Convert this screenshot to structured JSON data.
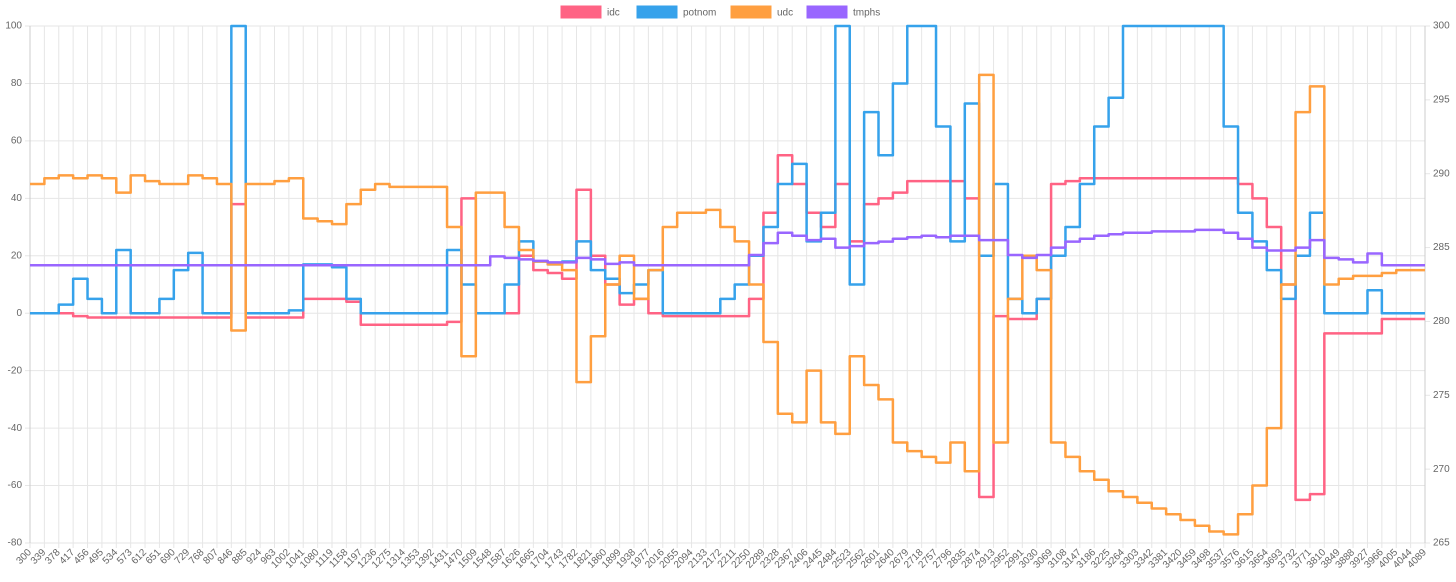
{
  "chart_data": {
    "type": "line",
    "stepped": true,
    "grid": true,
    "categories": [
      "300",
      "339",
      "378",
      "417",
      "456",
      "495",
      "534",
      "573",
      "612",
      "651",
      "690",
      "729",
      "768",
      "807",
      "846",
      "885",
      "924",
      "963",
      "1002",
      "1041",
      "1080",
      "1119",
      "1158",
      "1197",
      "1236",
      "1275",
      "1314",
      "1353",
      "1392",
      "1431",
      "1470",
      "1509",
      "1548",
      "1587",
      "1626",
      "1665",
      "1704",
      "1743",
      "1782",
      "1821",
      "1860",
      "1899",
      "1938",
      "1977",
      "2016",
      "2055",
      "2094",
      "2133",
      "2172",
      "2211",
      "2250",
      "2289",
      "2328",
      "2367",
      "2406",
      "2445",
      "2484",
      "2523",
      "2562",
      "2601",
      "2640",
      "2679",
      "2718",
      "2757",
      "2796",
      "2835",
      "2874",
      "2913",
      "2952",
      "2991",
      "3030",
      "3069",
      "3108",
      "3147",
      "3186",
      "3225",
      "3264",
      "3303",
      "3342",
      "3381",
      "3420",
      "3459",
      "3498",
      "3537",
      "3576",
      "3615",
      "3654",
      "3693",
      "3732",
      "3771",
      "3810",
      "3849",
      "3888",
      "3927",
      "3966",
      "4005",
      "4044",
      "4089"
    ],
    "ylim": [
      -80,
      100
    ],
    "yticks": [
      -80,
      -60,
      -40,
      -20,
      0,
      20,
      40,
      60,
      80,
      100
    ],
    "y2lim": [
      265,
      300
    ],
    "y2ticks": [
      265,
      270,
      275,
      280,
      285,
      290,
      295,
      300
    ],
    "series": [
      {
        "name": "idc",
        "color": "#ff6384",
        "values": [
          0,
          0,
          0,
          -1,
          -1.5,
          -1.5,
          -1.5,
          -1.5,
          -1.5,
          -1.5,
          -1.5,
          -1.5,
          -1.5,
          -1.5,
          38,
          -1.5,
          -1.5,
          -1.5,
          -1.5,
          5,
          5,
          5,
          4,
          -4,
          -4,
          -4,
          -4,
          -4,
          -4,
          -3,
          40,
          0,
          0,
          0,
          20,
          15,
          14,
          12,
          43,
          20,
          10,
          3,
          5,
          0,
          -1,
          -1,
          -1,
          -1,
          -1,
          -1,
          5,
          35,
          55,
          45,
          35,
          30,
          45,
          25,
          38,
          40,
          42,
          46,
          46,
          46,
          46,
          40,
          -64,
          -1,
          -2,
          -2,
          5,
          45,
          46,
          47,
          47,
          47,
          47,
          47,
          47,
          47,
          47,
          47,
          47,
          47,
          45,
          40,
          30,
          10,
          -65,
          -63,
          -7,
          -7,
          -7,
          -7,
          -2,
          -2,
          -2,
          -2
        ]
      },
      {
        "name": "potnom",
        "color": "#36a2eb",
        "values": [
          0,
          0,
          3,
          12,
          5,
          0,
          22,
          0,
          0,
          5,
          15,
          21,
          0,
          0,
          100,
          0,
          0,
          0,
          1,
          17,
          17,
          16,
          5,
          0,
          0,
          0,
          0,
          0,
          0,
          22,
          10,
          0,
          0,
          10,
          25,
          18,
          17,
          18,
          25,
          15,
          12,
          7,
          10,
          15,
          0,
          0,
          0,
          0,
          5,
          10,
          20,
          30,
          45,
          52,
          25,
          35,
          100,
          10,
          70,
          55,
          80,
          100,
          100,
          65,
          25,
          73,
          20,
          45,
          5,
          0,
          5,
          20,
          30,
          45,
          65,
          75,
          100,
          100,
          100,
          100,
          100,
          100,
          100,
          65,
          35,
          25,
          15,
          5,
          20,
          35,
          0,
          0,
          0,
          8,
          0,
          0,
          0,
          0
        ]
      },
      {
        "name": "udc",
        "color": "#ff9f40",
        "values": [
          45,
          47,
          48,
          47,
          48,
          47,
          42,
          48,
          46,
          45,
          45,
          48,
          47,
          45,
          -6,
          45,
          45,
          46,
          47,
          33,
          32,
          31,
          38,
          43,
          45,
          44,
          44,
          44,
          44,
          30,
          -15,
          42,
          42,
          30,
          22,
          18,
          17,
          15,
          -24,
          -8,
          10,
          20,
          5,
          15,
          30,
          35,
          35,
          36,
          30,
          25,
          10,
          -10,
          -35,
          -38,
          -20,
          -38,
          -42,
          -15,
          -25,
          -30,
          -45,
          -48,
          -50,
          -52,
          -45,
          -55,
          83,
          -45,
          5,
          20,
          15,
          -45,
          -50,
          -55,
          -58,
          -62,
          -64,
          -66,
          -68,
          -70,
          -72,
          -74,
          -76,
          -77,
          -70,
          -60,
          -40,
          10,
          70,
          79,
          10,
          12,
          13,
          13,
          14,
          15,
          15,
          15
        ]
      },
      {
        "name": "tmphs",
        "color": "#9966ff",
        "axis": "y2",
        "values": [
          283.8,
          283.8,
          283.8,
          283.8,
          283.8,
          283.8,
          283.8,
          283.8,
          283.8,
          283.8,
          283.8,
          283.8,
          283.8,
          283.8,
          283.8,
          283.8,
          283.8,
          283.8,
          283.8,
          283.8,
          283.8,
          283.8,
          283.8,
          283.8,
          283.8,
          283.8,
          283.8,
          283.8,
          283.8,
          283.8,
          283.8,
          283.8,
          284.4,
          284.3,
          284.2,
          284.1,
          284,
          284,
          284.3,
          284.2,
          283.9,
          284,
          283.8,
          283.8,
          283.8,
          283.8,
          283.8,
          283.8,
          283.8,
          283.8,
          284.5,
          285.3,
          286,
          285.8,
          285.5,
          285.6,
          285,
          285.1,
          285.3,
          285.4,
          285.6,
          285.7,
          285.8,
          285.7,
          285.8,
          285.8,
          285.5,
          285.5,
          284.5,
          284.3,
          284.5,
          285,
          285.4,
          285.6,
          285.8,
          285.9,
          286,
          286,
          286.1,
          286.1,
          286.1,
          286.2,
          286.2,
          286,
          285.6,
          285,
          284.8,
          284.8,
          285,
          285.5,
          284.3,
          284.2,
          284,
          284.6,
          283.8,
          283.8,
          283.8,
          283.8
        ]
      }
    ]
  }
}
